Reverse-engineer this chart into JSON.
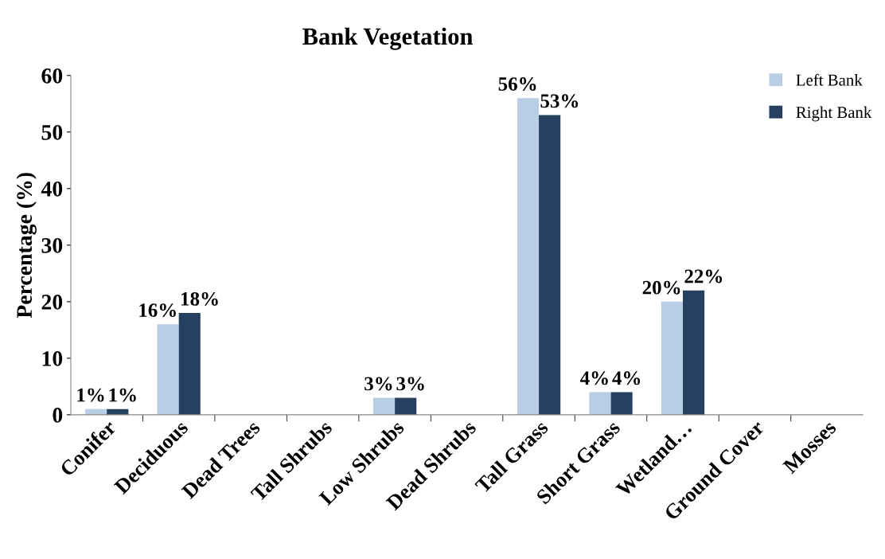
{
  "chart_data": {
    "type": "bar",
    "title": "Bank Vegetation",
    "ylabel": "Percentage (%)",
    "categories": [
      "Conifer",
      "Deciduous",
      "Dead Trees",
      "Tall Shrubs",
      "Low Shrubs",
      "Dead Shrubs",
      "Tall Grass",
      "Short Grass",
      "Wetland…",
      "Ground Cover",
      "Mosses"
    ],
    "series": [
      {
        "name": "Left Bank",
        "color": "#b9cde5",
        "values": [
          1,
          16,
          0,
          0,
          3,
          0,
          56,
          4,
          20,
          0,
          0
        ],
        "value_labels": [
          "1%",
          "16%",
          null,
          null,
          "3%",
          null,
          "56%",
          "4%",
          "20%",
          null,
          null
        ]
      },
      {
        "name": "Right Bank",
        "color": "#254061",
        "values": [
          1,
          18,
          0,
          0,
          3,
          0,
          53,
          4,
          22,
          0,
          0
        ],
        "value_labels": [
          "1%",
          "18%",
          null,
          null,
          "3%",
          null,
          "53%",
          "4%",
          "22%",
          null,
          null
        ]
      }
    ],
    "ylim": [
      0,
      60
    ],
    "yticks": [
      0,
      10,
      20,
      30,
      40,
      50,
      60
    ],
    "grid": false,
    "legend": "top right"
  }
}
